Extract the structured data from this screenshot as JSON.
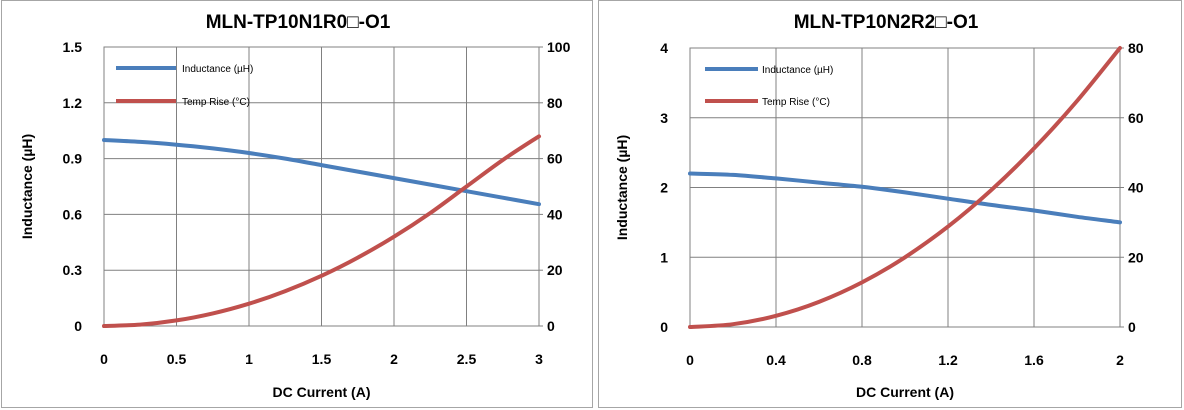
{
  "chart_data": [
    {
      "type": "line",
      "title": "MLN-TP10N1R0□-O1",
      "xlabel": "DC Current (A)",
      "ylabel": "Inductance (µH)",
      "xlim": [
        0,
        3
      ],
      "ylim": [
        0,
        1.5
      ],
      "y2lim": [
        0,
        100
      ],
      "x_ticks": [
        "0",
        "0.5",
        "1",
        "1.5",
        "2",
        "2.5",
        "3"
      ],
      "y_ticks": [
        "0",
        "0.3",
        "0.6",
        "0.9",
        "1.2",
        "1.5"
      ],
      "y2_ticks": [
        "0",
        "20",
        "40",
        "60",
        "80",
        "100"
      ],
      "grid": true,
      "legend_position": "top-left",
      "series": [
        {
          "name": "Inductance (µH)",
          "axis": "left",
          "color": "#4a7ebb",
          "x": [
            0,
            0.25,
            0.5,
            0.75,
            1,
            1.25,
            1.5,
            1.75,
            2,
            2.25,
            2.5,
            2.75,
            3
          ],
          "y": [
            1.0,
            0.99,
            0.975,
            0.955,
            0.93,
            0.9,
            0.865,
            0.83,
            0.795,
            0.76,
            0.725,
            0.69,
            0.655
          ]
        },
        {
          "name": "Temp Rise (°C)",
          "axis": "right",
          "color": "#c0504d",
          "x": [
            0,
            0.25,
            0.5,
            0.75,
            1,
            1.25,
            1.5,
            1.75,
            2,
            2.25,
            2.5,
            2.75,
            3
          ],
          "y": [
            0,
            0.5,
            2,
            4.5,
            8,
            12.5,
            18,
            24.5,
            32,
            40.5,
            50,
            59.5,
            68
          ]
        }
      ]
    },
    {
      "type": "line",
      "title": "MLN-TP10N2R2□-O1",
      "xlabel": "DC Current (A)",
      "ylabel": "Inductance (µH)",
      "xlim": [
        0,
        2
      ],
      "ylim": [
        0,
        4
      ],
      "y2lim": [
        0,
        80
      ],
      "x_ticks": [
        "0",
        "0.4",
        "0.8",
        "1.2",
        "1.6",
        "2"
      ],
      "y_ticks": [
        "0",
        "1",
        "2",
        "3",
        "4"
      ],
      "y2_ticks": [
        "0",
        "20",
        "40",
        "60",
        "80"
      ],
      "grid": true,
      "legend_position": "top-left",
      "series": [
        {
          "name": "Inductance (µH)",
          "axis": "left",
          "color": "#4a7ebb",
          "x": [
            0,
            0.2,
            0.4,
            0.6,
            0.8,
            1.0,
            1.2,
            1.4,
            1.6,
            1.8,
            2.0
          ],
          "y": [
            2.2,
            2.18,
            2.13,
            2.07,
            2.01,
            1.93,
            1.84,
            1.75,
            1.67,
            1.58,
            1.5
          ]
        },
        {
          "name": "Temp Rise (°C)",
          "axis": "right",
          "color": "#c0504d",
          "x": [
            0,
            0.2,
            0.4,
            0.6,
            0.8,
            1.0,
            1.2,
            1.4,
            1.6,
            1.8,
            2.0
          ],
          "y": [
            0,
            0.8,
            3.2,
            7.2,
            12.8,
            20,
            28.8,
            39.2,
            51.2,
            64.8,
            80
          ]
        }
      ]
    }
  ]
}
